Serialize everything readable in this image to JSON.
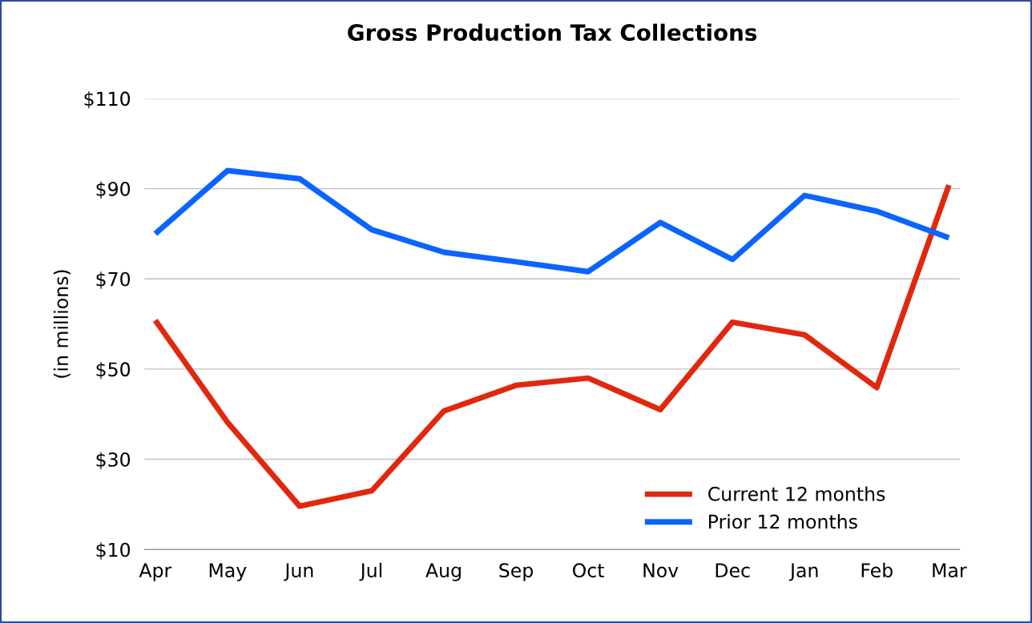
{
  "chart_data": {
    "type": "line",
    "title": "Gross Production Tax Collections",
    "ylabel": "(in millions)",
    "categories": [
      "Apr",
      "May",
      "Jun",
      "Jul",
      "Aug",
      "Sep",
      "Oct",
      "Nov",
      "Dec",
      "Jan",
      "Feb",
      "Mar"
    ],
    "series": [
      {
        "name": "Current 12 months",
        "color": "#e0280f",
        "values": [
          60.8,
          38.2,
          19.6,
          23,
          40.7,
          46.4,
          48,
          41,
          60.4,
          57.6,
          45.9,
          90.8
        ]
      },
      {
        "name": "Prior 12 months",
        "color": "#0a64ff",
        "values": [
          80,
          94,
          92.2,
          80.9,
          75.9,
          73.8,
          71.6,
          82.5,
          74.3,
          88.5,
          85,
          79.1
        ]
      }
    ],
    "ylim": [
      10,
      110
    ],
    "yticks": [
      {
        "value": 10,
        "label": "$10"
      },
      {
        "value": 30,
        "label": "$30"
      },
      {
        "value": 50,
        "label": "$50"
      },
      {
        "value": 70,
        "label": "$70"
      },
      {
        "value": 90,
        "label": "$90"
      },
      {
        "value": 110,
        "label": "$110"
      }
    ],
    "grid": "y",
    "legend": "bottom right",
    "marker": "none",
    "line_style": "solid"
  }
}
